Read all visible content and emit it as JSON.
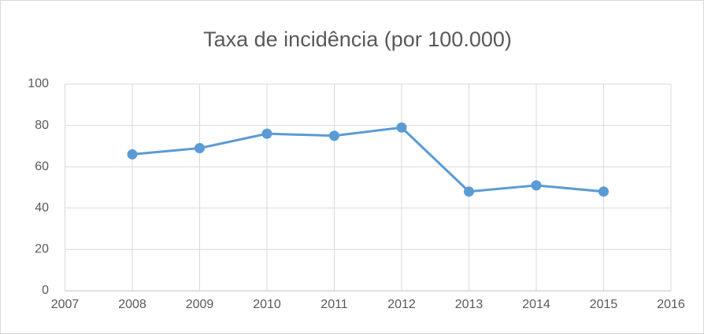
{
  "chart_data": {
    "type": "line",
    "title": "Taxa de incidência (por 100.000)",
    "x": [
      2008,
      2009,
      2010,
      2011,
      2012,
      2013,
      2014,
      2015
    ],
    "values": [
      66,
      69,
      76,
      75,
      79,
      48,
      51,
      48
    ],
    "color": "#5b9bd5",
    "xlim": [
      2007,
      2016
    ],
    "xticks": [
      2007,
      2008,
      2009,
      2010,
      2011,
      2012,
      2013,
      2014,
      2015,
      2016
    ],
    "ylim": [
      0,
      100
    ],
    "yticks": [
      0,
      20,
      40,
      60,
      80,
      100
    ],
    "grid": true
  }
}
